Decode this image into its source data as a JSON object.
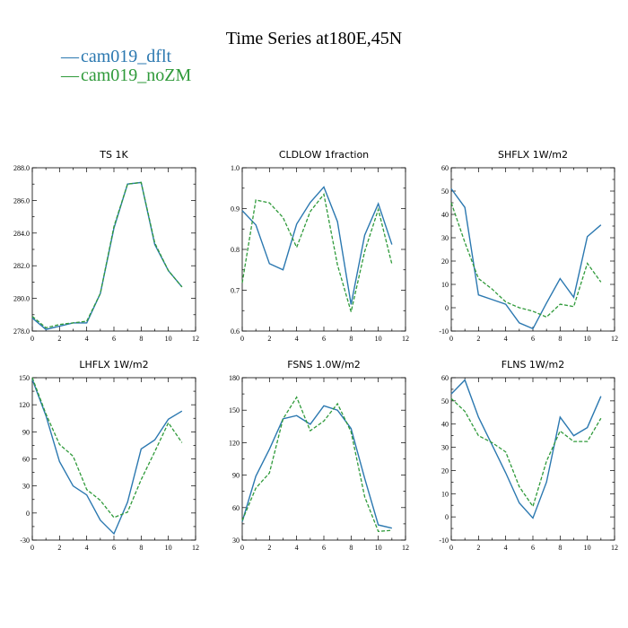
{
  "figure": {
    "title": "Time Series at180E,45N",
    "colors": {
      "dflt": "#2b78b0",
      "noZM": "#2f9a3a"
    }
  },
  "legend": [
    {
      "line": "—",
      "label": "cam019_dflt",
      "color": "#2b78b0"
    },
    {
      "line": "—",
      "label": "cam019_noZM",
      "color": "#2f9a3a"
    }
  ],
  "chart_data": [
    {
      "type": "line",
      "title": "TS   1K",
      "xlim": [
        0,
        12
      ],
      "xticks": [
        0,
        2,
        4,
        6,
        8,
        10,
        12
      ],
      "ylim": [
        278,
        288
      ],
      "yticks": [
        278,
        280,
        282,
        284,
        286,
        288
      ],
      "ytick_labels": [
        "278.0",
        "280.0",
        "282.0",
        "284.0",
        "286.0",
        "288.0"
      ],
      "x": [
        0,
        1,
        2,
        3,
        4,
        5,
        6,
        7,
        8,
        9,
        10,
        11
      ],
      "series": [
        {
          "name": "cam019_dflt",
          "values": [
            278.8,
            278.1,
            278.3,
            278.5,
            278.5,
            280.3,
            284.3,
            287.0,
            287.1,
            283.3,
            281.7,
            280.7
          ]
        },
        {
          "name": "cam019_noZM",
          "values": [
            278.9,
            278.2,
            278.4,
            278.5,
            278.6,
            280.3,
            284.4,
            287.0,
            287.1,
            283.4,
            281.7,
            280.7
          ]
        }
      ]
    },
    {
      "type": "line",
      "title": "CLDLOW   1fraction",
      "xlim": [
        0,
        12
      ],
      "xticks": [
        0,
        2,
        4,
        6,
        8,
        10,
        12
      ],
      "ylim": [
        0.6,
        1.0
      ],
      "yticks": [
        0.6,
        0.7,
        0.8,
        0.9,
        1.0
      ],
      "ytick_labels": [
        "0.6",
        "0.7",
        "0.8",
        "0.9",
        "1.0"
      ],
      "x": [
        0,
        1,
        2,
        3,
        4,
        5,
        6,
        7,
        8,
        9,
        10,
        11
      ],
      "series": [
        {
          "name": "cam019_dflt",
          "values": [
            0.895,
            0.86,
            0.765,
            0.75,
            0.862,
            0.915,
            0.953,
            0.868,
            0.665,
            0.835,
            0.912,
            0.812
          ]
        },
        {
          "name": "cam019_noZM",
          "values": [
            0.718,
            0.921,
            0.914,
            0.878,
            0.805,
            0.893,
            0.935,
            0.762,
            0.647,
            0.795,
            0.898,
            0.764
          ]
        }
      ]
    },
    {
      "type": "line",
      "title": "SHFLX   1W/m2",
      "xlim": [
        0,
        12
      ],
      "xticks": [
        0,
        2,
        4,
        6,
        8,
        10,
        12
      ],
      "ylim": [
        -10,
        60
      ],
      "yticks": [
        -10,
        0,
        10,
        20,
        30,
        40,
        50,
        60
      ],
      "ytick_labels": [
        "-10",
        "0",
        "10",
        "20",
        "30",
        "40",
        "50",
        "60"
      ],
      "x": [
        0,
        1,
        2,
        3,
        4,
        5,
        6,
        7,
        8,
        9,
        10,
        11
      ],
      "series": [
        {
          "name": "cam019_dflt",
          "values": [
            51,
            43,
            5.5,
            3.5,
            1.5,
            -6.5,
            -9,
            2,
            12.5,
            4.5,
            30.5,
            35.5
          ]
        },
        {
          "name": "cam019_noZM",
          "values": [
            45,
            28,
            12.5,
            8,
            2.5,
            0,
            -1.5,
            -4,
            1.5,
            0.5,
            19,
            11
          ]
        }
      ]
    },
    {
      "type": "line",
      "title": "LHFLX   1W/m2",
      "xlim": [
        0,
        12
      ],
      "xticks": [
        0,
        2,
        4,
        6,
        8,
        10,
        12
      ],
      "ylim": [
        -30,
        150
      ],
      "yticks": [
        -30,
        0,
        30,
        60,
        90,
        120,
        150
      ],
      "ytick_labels": [
        "-30",
        "0",
        "30",
        "60",
        "90",
        "120",
        "150"
      ],
      "x": [
        0,
        1,
        2,
        3,
        4,
        5,
        6,
        7,
        8,
        9,
        10,
        11
      ],
      "series": [
        {
          "name": "cam019_dflt",
          "values": [
            148,
            108,
            57,
            30,
            20,
            -8,
            -23,
            12,
            71,
            81,
            104,
            113
          ]
        },
        {
          "name": "cam019_noZM",
          "values": [
            150,
            110,
            76,
            63,
            26,
            14,
            -5,
            1,
            37,
            68,
            100,
            78
          ]
        }
      ]
    },
    {
      "type": "line",
      "title": "FSNS   1.0W/m2",
      "xlim": [
        0,
        12
      ],
      "xticks": [
        0,
        2,
        4,
        6,
        8,
        10,
        12
      ],
      "ylim": [
        30,
        180
      ],
      "yticks": [
        30,
        60,
        90,
        120,
        150,
        180
      ],
      "ytick_labels": [
        "30",
        "60",
        "90",
        "120",
        "150",
        "180"
      ],
      "x": [
        0,
        1,
        2,
        3,
        4,
        5,
        6,
        7,
        8,
        9,
        10,
        11
      ],
      "series": [
        {
          "name": "cam019_dflt",
          "values": [
            47,
            89,
            114,
            142,
            145,
            137,
            154,
            150,
            133,
            87,
            44,
            41
          ]
        },
        {
          "name": "cam019_noZM",
          "values": [
            48,
            78,
            92,
            142,
            162,
            131,
            140,
            156,
            130,
            70,
            38,
            39
          ]
        }
      ]
    },
    {
      "type": "line",
      "title": "FLNS   1W/m2",
      "xlim": [
        0,
        12
      ],
      "xticks": [
        0,
        2,
        4,
        6,
        8,
        10,
        12
      ],
      "ylim": [
        -10,
        60
      ],
      "yticks": [
        -10,
        0,
        10,
        20,
        30,
        40,
        50,
        60
      ],
      "ytick_labels": [
        "-10",
        "0",
        "10",
        "20",
        "30",
        "40",
        "50",
        "60"
      ],
      "x": [
        0,
        1,
        2,
        3,
        4,
        5,
        6,
        7,
        8,
        9,
        10,
        11
      ],
      "series": [
        {
          "name": "cam019_dflt",
          "values": [
            53,
            59,
            43,
            31,
            19,
            6,
            -0.5,
            15,
            43,
            35,
            38.5,
            52
          ]
        },
        {
          "name": "cam019_noZM",
          "values": [
            51,
            45.5,
            35,
            32,
            28,
            13,
            4.5,
            24,
            37,
            32.5,
            32.5,
            42.5
          ]
        }
      ]
    }
  ]
}
